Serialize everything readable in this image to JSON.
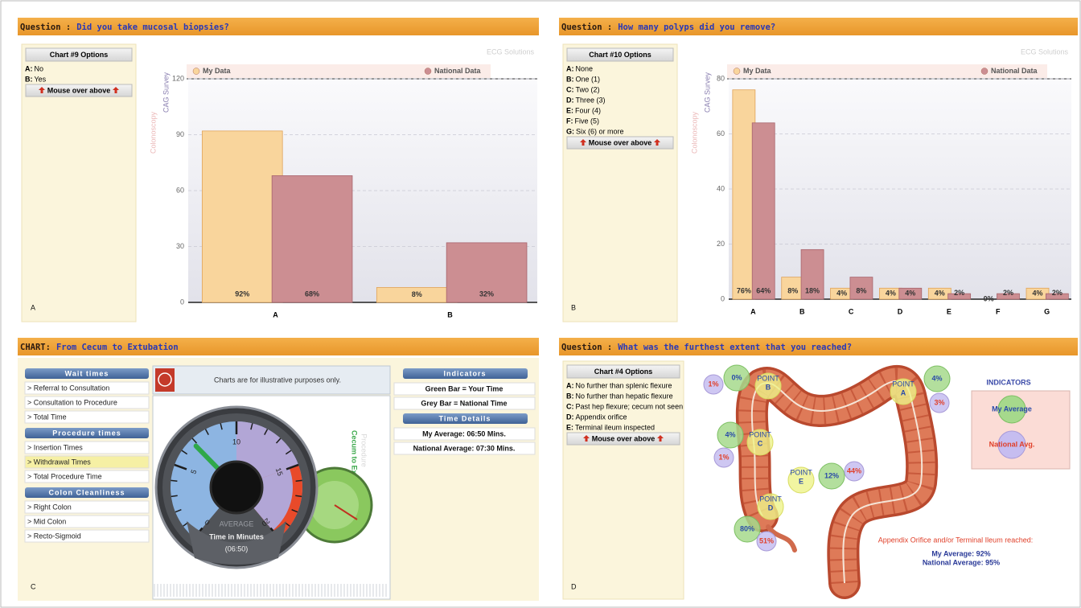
{
  "panels": [
    {
      "letter": "A",
      "header": {
        "label": "Question :",
        "text": "Did you take mucosal biopsies?"
      },
      "watermark": "ECG Solutions",
      "options_title": "Chart #9 Options",
      "options": [
        {
          "key": "A:",
          "text": "No"
        },
        {
          "key": "B:",
          "text": "Yes"
        }
      ],
      "button": "Mouse over above",
      "brand": "Colonoscopy",
      "brand_sub": "CAG Survey"
    },
    {
      "letter": "B",
      "header": {
        "label": "Question :",
        "text": "How many polyps did you remove?"
      },
      "watermark": "ECG Solutions",
      "options_title": "Chart #10 Options",
      "options": [
        {
          "key": "A:",
          "text": "None"
        },
        {
          "key": "B:",
          "text": "One (1)"
        },
        {
          "key": "C:",
          "text": "Two (2)"
        },
        {
          "key": "D:",
          "text": "Three (3)"
        },
        {
          "key": "E:",
          "text": "Four (4)"
        },
        {
          "key": "F:",
          "text": "Five (5)"
        },
        {
          "key": "G:",
          "text": "Six (6) or more"
        }
      ],
      "button": "Mouse over above",
      "brand": "Colonoscopy",
      "brand_sub": "CAG Survey"
    },
    {
      "letter": "C",
      "header": {
        "label": "CHART:",
        "text": "From Cecum to Extubation"
      },
      "menu": [
        {
          "title": "Wait times",
          "items": [
            "> Referral to Consultation",
            "> Consultation to Procedure",
            "> Total Time"
          ]
        },
        {
          "title": "Procedure times",
          "items": [
            "> Insertion Times",
            "> Withdrawal Times",
            "> Total Procedure Time"
          ]
        },
        {
          "title": "Colon Cleanliness",
          "items": [
            "> Right Colon",
            "> Mid Colon",
            "> Recto-Sigmoid"
          ]
        }
      ],
      "notice": "Charts are for illustrative purposes only.",
      "side_title": "Procedure",
      "side_subtitle": "Cecum to Extubation",
      "indicators_title": "Indicators",
      "indicators": [
        "Green Bar = Your Time",
        "Grey Bar = National Time"
      ],
      "details_title": "Time Details",
      "details": [
        "My Average: 06:50 Mins.",
        "National Average: 07:30 Mins."
      ]
    },
    {
      "letter": "D",
      "header": {
        "label": "Question :",
        "text": "What was the furthest extent that you reached?"
      },
      "options_title": "Chart #4 Options",
      "options": [
        {
          "key": "A:",
          "text": "No further than splenic flexure"
        },
        {
          "key": "B:",
          "text": "No further than hepatic flexure"
        },
        {
          "key": "C:",
          "text": "Past hep flexure; cecum not seen"
        },
        {
          "key": "D:",
          "text": "Appendix orifice"
        },
        {
          "key": "E:",
          "text": "Terminal ileum inspected"
        }
      ],
      "button": "Mouse over above",
      "points": [
        {
          "tag": "POINT",
          "name": "A",
          "my": "4%",
          "national": "3%"
        },
        {
          "tag": "POINT",
          "name": "B",
          "my": "0%",
          "national": "1%"
        },
        {
          "tag": "POINT",
          "name": "C",
          "my": "4%",
          "national": "1%"
        },
        {
          "tag": "POINT",
          "name": "E",
          "my": "12%",
          "national": "44%"
        },
        {
          "tag": "POINT",
          "name": "D",
          "my": "80%",
          "national": "51%"
        }
      ],
      "indicators_title": "INDICATORS",
      "legend": [
        "My Average",
        "National Avg."
      ],
      "summary_title": "Appendix Orifice and/or Terminal Ileum reached:",
      "summary": [
        "My Average: 92%",
        "National Average: 95%"
      ]
    }
  ],
  "chart_data": [
    {
      "type": "bar",
      "categories": [
        "A",
        "B"
      ],
      "series": [
        {
          "name": "My Data",
          "color": "#f9d59c",
          "values": [
            92,
            8
          ],
          "value_labels": [
            "92%",
            "8%"
          ]
        },
        {
          "name": "National Data",
          "color": "#cc8e92",
          "values": [
            68,
            32
          ],
          "value_labels": [
            "68%",
            "32%"
          ]
        }
      ],
      "ylim": [
        0,
        120
      ],
      "yticks": [
        0,
        30,
        60,
        90,
        120
      ],
      "grid": true
    },
    {
      "type": "bar",
      "categories": [
        "A",
        "B",
        "C",
        "D",
        "E",
        "F",
        "G"
      ],
      "series": [
        {
          "name": "My Data",
          "color": "#f9d59c",
          "values": [
            76,
            8,
            4,
            4,
            4,
            0,
            4
          ],
          "value_labels": [
            "76%",
            "8%",
            "4%",
            "4%",
            "4%",
            "0%",
            "4%"
          ]
        },
        {
          "name": "National Data",
          "color": "#cc8e92",
          "values": [
            64,
            18,
            8,
            4,
            2,
            2,
            2
          ],
          "value_labels": [
            "64%",
            "18%",
            "8%",
            "4%",
            "2%",
            "2%",
            "2%"
          ]
        }
      ],
      "ylim": [
        0,
        80
      ],
      "yticks": [
        0,
        20,
        40,
        60,
        80
      ],
      "grid": true
    },
    {
      "type": "gauge",
      "lim": [
        0,
        20
      ],
      "ticks": [
        0,
        5,
        10,
        15,
        20
      ],
      "value": 6.83,
      "center_label": "AVERAGE",
      "title": "Time in Minutes",
      "value_label": "(06:50)",
      "color": "#2fa84a"
    }
  ]
}
